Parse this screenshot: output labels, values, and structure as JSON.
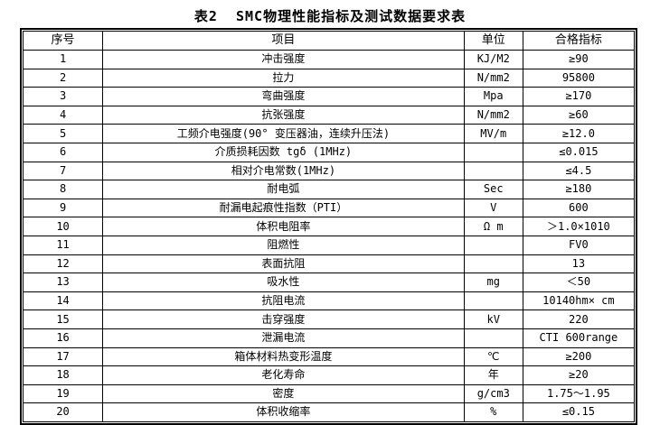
{
  "title": "表2  SMC物理性能指标及测试数据要求表",
  "table": {
    "headers": [
      "序号",
      "项目",
      "单位",
      "合格指标"
    ],
    "rows": [
      [
        "1",
        "冲击强度",
        "KJ/M2",
        "≥90"
      ],
      [
        "2",
        "拉力",
        "N/mm2",
        "95800"
      ],
      [
        "3",
        "弯曲强度",
        "Mpa",
        "≥170"
      ],
      [
        "4",
        "抗张强度",
        "N/mm2",
        "≥60"
      ],
      [
        "5",
        "工频介电强度(90° 变压器油，连续升压法)",
        "MV/m",
        "≥12.0"
      ],
      [
        "6",
        "介质损耗因数 tgδ (1MHz)",
        "",
        "≤0.015"
      ],
      [
        "7",
        "相对介电常数(1MHz)",
        "",
        "≤4.5"
      ],
      [
        "8",
        "耐电弧",
        "Sec",
        "≥180"
      ],
      [
        "9",
        "耐漏电起痕性指数（PTI）",
        "V",
        "600"
      ],
      [
        "10",
        "体积电阻率",
        "Ω m",
        "＞1.0×1010"
      ],
      [
        "11",
        "阻燃性",
        "",
        "FV0"
      ],
      [
        "12",
        "表面抗阻",
        "",
        "13"
      ],
      [
        "13",
        "吸水性",
        "mg",
        "＜50"
      ],
      [
        "14",
        "抗阻电流",
        "",
        "10140hm× cm"
      ],
      [
        "15",
        "击穿强度",
        "kV",
        "220"
      ],
      [
        "16",
        "泄漏电流",
        "",
        "CTI 600range"
      ],
      [
        "17",
        "箱体材料热变形温度",
        "℃",
        "≥200"
      ],
      [
        "18",
        "老化寿命",
        "年",
        "≥20"
      ],
      [
        "19",
        "密度",
        "g/cm3",
        "1.75～1.95"
      ],
      [
        "20",
        "体积收缩率",
        "%",
        "≤0.15"
      ]
    ]
  }
}
